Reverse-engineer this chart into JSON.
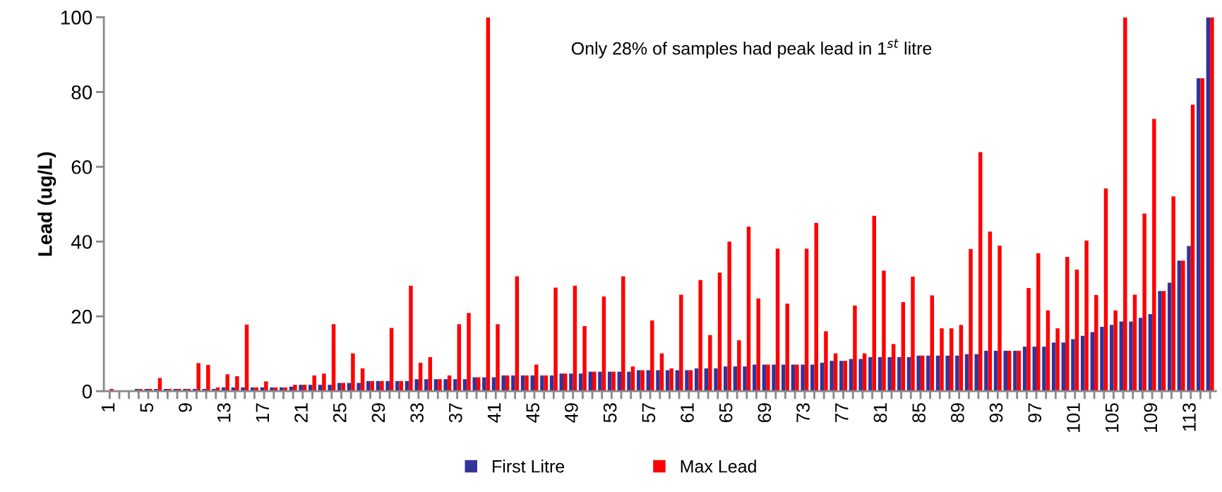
{
  "chart_data": {
    "type": "bar",
    "ylabel": "Lead (ug/L)",
    "annotations": [
      "Only 28% of samples had peak lead in 1$^{st}$ litre"
    ],
    "categories": [
      "1",
      null,
      null,
      null,
      "5",
      null,
      null,
      null,
      "9",
      null,
      null,
      null,
      "13",
      null,
      null,
      null,
      "17",
      null,
      null,
      null,
      "21",
      null,
      null,
      null,
      "25",
      null,
      null,
      null,
      "29",
      null,
      null,
      null,
      "33",
      null,
      null,
      null,
      "37",
      null,
      null,
      null,
      "41",
      null,
      null,
      null,
      "45",
      null,
      null,
      null,
      "49",
      null,
      null,
      null,
      "53",
      null,
      null,
      null,
      "57",
      null,
      null,
      null,
      "61",
      null,
      null,
      null,
      "65",
      null,
      null,
      null,
      "69",
      null,
      null,
      null,
      "73",
      null,
      null,
      null,
      "77",
      null,
      null,
      null,
      "81",
      null,
      null,
      null,
      "85",
      null,
      null,
      null,
      "89",
      null,
      null,
      null,
      "93",
      null,
      null,
      null,
      "97",
      null,
      null,
      null,
      "101",
      null,
      null,
      null,
      "105",
      null,
      null,
      null,
      "109",
      null,
      null,
      null,
      "113",
      null,
      null
    ],
    "series": [
      {
        "name": "First Litre",
        "color": "#333399",
        "values": [
          0.1,
          0.1,
          0.1,
          0.6,
          0.6,
          0.6,
          0.6,
          0.6,
          0.6,
          0.6,
          0.6,
          0.6,
          1.0,
          1.0,
          1.0,
          1.0,
          1.0,
          1.0,
          1.0,
          1.2,
          1.7,
          1.7,
          1.7,
          1.7,
          2.2,
          2.2,
          2.2,
          2.7,
          2.7,
          2.7,
          2.7,
          2.7,
          3.2,
          3.2,
          3.2,
          3.2,
          3.2,
          3.2,
          3.7,
          3.7,
          3.7,
          4.2,
          4.2,
          4.2,
          4.2,
          4.2,
          4.2,
          4.7,
          4.7,
          4.7,
          5.2,
          5.2,
          5.2,
          5.2,
          5.2,
          5.6,
          5.6,
          5.6,
          5.6,
          5.6,
          5.6,
          6.1,
          6.1,
          6.1,
          6.6,
          6.6,
          6.6,
          7.1,
          7.1,
          7.1,
          7.1,
          7.1,
          7.1,
          7.1,
          7.6,
          8.1,
          8.1,
          8.6,
          8.6,
          9.1,
          9.1,
          9.1,
          9.1,
          9.1,
          9.5,
          9.5,
          9.5,
          9.5,
          9.5,
          9.9,
          9.9,
          10.8,
          10.8,
          10.8,
          10.8,
          11.9,
          11.9,
          11.9,
          13,
          13,
          13.9,
          14.8,
          15.8,
          17.2,
          17.7,
          18.6,
          18.6,
          19.6,
          20.6,
          26.8,
          29,
          34.9,
          38.8,
          83.7,
          100
        ]
      },
      {
        "name": "Max Lead",
        "color": "#ff0000",
        "values": [
          0.6,
          null,
          null,
          0.6,
          0.6,
          3.5,
          0.6,
          0.6,
          0.6,
          7.5,
          7.0,
          1.0,
          4.5,
          4.0,
          17.8,
          1.0,
          2.6,
          1.0,
          1.0,
          1.7,
          1.7,
          4.2,
          4.7,
          17.9,
          2.2,
          10.1,
          6.1,
          2.7,
          2.7,
          16.9,
          2.7,
          28.2,
          7.6,
          9.1,
          3.2,
          4.2,
          17.9,
          20.9,
          3.7,
          100,
          17.9,
          4.2,
          30.7,
          4.2,
          7.1,
          4.2,
          27.7,
          4.7,
          28.2,
          17.4,
          5.2,
          25.3,
          5.2,
          30.7,
          6.6,
          5.6,
          18.9,
          10.1,
          6.1,
          25.8,
          5.6,
          29.7,
          15,
          31.7,
          40,
          13.6,
          44,
          24.8,
          7.1,
          38.1,
          23.4,
          7.1,
          38.1,
          45,
          16,
          10.1,
          8.1,
          22.9,
          10.1,
          46.9,
          32.2,
          12.6,
          23.8,
          30.6,
          9.5,
          25.6,
          16.8,
          16.8,
          17.7,
          38,
          63.9,
          42.7,
          38.9,
          10.8,
          10.8,
          27.6,
          36.9,
          21.6,
          16.8,
          35.9,
          32.5,
          40.3,
          25.7,
          54.2,
          21.6,
          100,
          25.8,
          47.5,
          72.8,
          26.8,
          52.1,
          34.9,
          76.6,
          83.7,
          100
        ]
      }
    ],
    "ylim": [
      0,
      100
    ],
    "yticks": [
      0,
      20,
      40,
      60,
      80,
      100
    ],
    "legend": "bottom"
  }
}
